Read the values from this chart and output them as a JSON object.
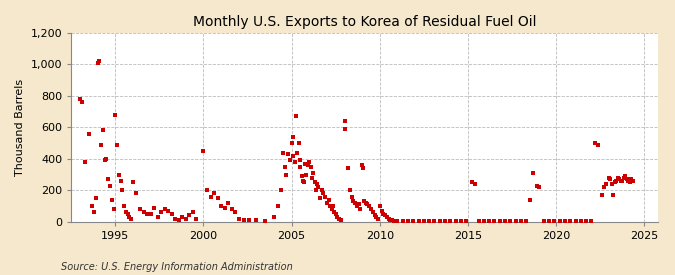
{
  "title": "Monthly U.S. Exports to Korea of Residual Fuel Oil",
  "ylabel": "Thousand Barrels",
  "source": "Source: U.S. Energy Information Administration",
  "background_color": "#f5e8cc",
  "plot_bg_color": "#ffffff",
  "marker_color": "#cc0000",
  "grid_color": "#bbbbbb",
  "xlim": [
    1992.5,
    2025.8
  ],
  "ylim": [
    0,
    1200
  ],
  "yticks": [
    0,
    200,
    400,
    600,
    800,
    1000,
    1200
  ],
  "xticks": [
    1995,
    2000,
    2005,
    2010,
    2015,
    2020,
    2025
  ],
  "data": [
    [
      1993.0,
      780
    ],
    [
      1993.1,
      760
    ],
    [
      1993.3,
      380
    ],
    [
      1993.5,
      560
    ],
    [
      1993.7,
      100
    ],
    [
      1993.8,
      60
    ],
    [
      1993.9,
      150
    ],
    [
      1994.0,
      1010
    ],
    [
      1994.08,
      1020
    ],
    [
      1994.2,
      490
    ],
    [
      1994.3,
      580
    ],
    [
      1994.4,
      390
    ],
    [
      1994.5,
      400
    ],
    [
      1994.6,
      270
    ],
    [
      1994.7,
      230
    ],
    [
      1994.8,
      140
    ],
    [
      1994.9,
      80
    ],
    [
      1995.0,
      680
    ],
    [
      1995.1,
      490
    ],
    [
      1995.2,
      300
    ],
    [
      1995.3,
      260
    ],
    [
      1995.4,
      200
    ],
    [
      1995.5,
      100
    ],
    [
      1995.6,
      60
    ],
    [
      1995.7,
      50
    ],
    [
      1995.8,
      30
    ],
    [
      1995.9,
      20
    ],
    [
      1996.0,
      250
    ],
    [
      1996.2,
      180
    ],
    [
      1996.4,
      80
    ],
    [
      1996.6,
      60
    ],
    [
      1996.8,
      50
    ],
    [
      1997.0,
      50
    ],
    [
      1997.2,
      90
    ],
    [
      1997.4,
      30
    ],
    [
      1997.6,
      60
    ],
    [
      1997.8,
      80
    ],
    [
      1998.0,
      70
    ],
    [
      1998.2,
      50
    ],
    [
      1998.4,
      20
    ],
    [
      1998.6,
      10
    ],
    [
      1998.8,
      30
    ],
    [
      1999.0,
      20
    ],
    [
      1999.2,
      40
    ],
    [
      1999.4,
      60
    ],
    [
      1999.6,
      20
    ],
    [
      2000.0,
      450
    ],
    [
      2000.2,
      200
    ],
    [
      2000.4,
      160
    ],
    [
      2000.6,
      180
    ],
    [
      2000.8,
      150
    ],
    [
      2001.0,
      100
    ],
    [
      2001.2,
      90
    ],
    [
      2001.4,
      120
    ],
    [
      2001.6,
      80
    ],
    [
      2001.8,
      60
    ],
    [
      2002.0,
      20
    ],
    [
      2002.3,
      10
    ],
    [
      2002.6,
      10
    ],
    [
      2003.0,
      10
    ],
    [
      2003.5,
      5
    ],
    [
      2004.0,
      30
    ],
    [
      2004.2,
      100
    ],
    [
      2004.4,
      200
    ],
    [
      2004.5,
      440
    ],
    [
      2004.6,
      350
    ],
    [
      2004.7,
      300
    ],
    [
      2004.8,
      430
    ],
    [
      2004.9,
      390
    ],
    [
      2005.0,
      500
    ],
    [
      2005.05,
      540
    ],
    [
      2005.1,
      420
    ],
    [
      2005.2,
      380
    ],
    [
      2005.25,
      670
    ],
    [
      2005.3,
      440
    ],
    [
      2005.4,
      500
    ],
    [
      2005.45,
      390
    ],
    [
      2005.5,
      350
    ],
    [
      2005.6,
      290
    ],
    [
      2005.65,
      260
    ],
    [
      2005.7,
      250
    ],
    [
      2005.75,
      370
    ],
    [
      2005.8,
      300
    ],
    [
      2005.9,
      360
    ],
    [
      2006.0,
      380
    ],
    [
      2006.1,
      350
    ],
    [
      2006.15,
      280
    ],
    [
      2006.2,
      310
    ],
    [
      2006.3,
      250
    ],
    [
      2006.4,
      200
    ],
    [
      2006.45,
      240
    ],
    [
      2006.5,
      220
    ],
    [
      2006.6,
      150
    ],
    [
      2006.7,
      200
    ],
    [
      2006.8,
      180
    ],
    [
      2006.9,
      160
    ],
    [
      2007.0,
      120
    ],
    [
      2007.1,
      140
    ],
    [
      2007.2,
      100
    ],
    [
      2007.3,
      80
    ],
    [
      2007.35,
      100
    ],
    [
      2007.4,
      60
    ],
    [
      2007.5,
      50
    ],
    [
      2007.6,
      30
    ],
    [
      2007.7,
      20
    ],
    [
      2007.8,
      10
    ],
    [
      2008.0,
      640
    ],
    [
      2008.05,
      590
    ],
    [
      2008.2,
      340
    ],
    [
      2008.3,
      200
    ],
    [
      2008.4,
      160
    ],
    [
      2008.5,
      130
    ],
    [
      2008.6,
      120
    ],
    [
      2008.7,
      100
    ],
    [
      2008.8,
      110
    ],
    [
      2008.9,
      80
    ],
    [
      2009.0,
      360
    ],
    [
      2009.05,
      340
    ],
    [
      2009.1,
      130
    ],
    [
      2009.2,
      120
    ],
    [
      2009.3,
      110
    ],
    [
      2009.4,
      100
    ],
    [
      2009.5,
      80
    ],
    [
      2009.6,
      60
    ],
    [
      2009.7,
      40
    ],
    [
      2009.8,
      30
    ],
    [
      2009.9,
      20
    ],
    [
      2010.0,
      100
    ],
    [
      2010.1,
      70
    ],
    [
      2010.2,
      50
    ],
    [
      2010.3,
      40
    ],
    [
      2010.4,
      30
    ],
    [
      2010.5,
      20
    ],
    [
      2010.6,
      10
    ],
    [
      2010.7,
      10
    ],
    [
      2010.8,
      5
    ],
    [
      2010.9,
      5
    ],
    [
      2011.0,
      5
    ],
    [
      2011.3,
      5
    ],
    [
      2011.6,
      5
    ],
    [
      2011.9,
      5
    ],
    [
      2012.2,
      5
    ],
    [
      2012.5,
      5
    ],
    [
      2012.8,
      5
    ],
    [
      2013.1,
      5
    ],
    [
      2013.4,
      5
    ],
    [
      2013.7,
      5
    ],
    [
      2014.0,
      5
    ],
    [
      2014.3,
      5
    ],
    [
      2014.6,
      5
    ],
    [
      2014.9,
      5
    ],
    [
      2015.2,
      250
    ],
    [
      2015.4,
      240
    ],
    [
      2015.6,
      5
    ],
    [
      2015.9,
      5
    ],
    [
      2016.2,
      5
    ],
    [
      2016.5,
      5
    ],
    [
      2016.8,
      5
    ],
    [
      2017.1,
      5
    ],
    [
      2017.4,
      5
    ],
    [
      2017.7,
      5
    ],
    [
      2018.0,
      5
    ],
    [
      2018.3,
      5
    ],
    [
      2018.5,
      140
    ],
    [
      2018.7,
      310
    ],
    [
      2018.9,
      230
    ],
    [
      2019.0,
      220
    ],
    [
      2019.3,
      5
    ],
    [
      2019.6,
      5
    ],
    [
      2019.9,
      5
    ],
    [
      2020.2,
      5
    ],
    [
      2020.5,
      5
    ],
    [
      2020.8,
      5
    ],
    [
      2021.1,
      5
    ],
    [
      2021.4,
      5
    ],
    [
      2021.7,
      5
    ],
    [
      2022.0,
      5
    ],
    [
      2022.2,
      500
    ],
    [
      2022.35,
      490
    ],
    [
      2022.6,
      170
    ],
    [
      2022.7,
      220
    ],
    [
      2022.8,
      240
    ],
    [
      2023.0,
      280
    ],
    [
      2023.08,
      270
    ],
    [
      2023.17,
      240
    ],
    [
      2023.25,
      170
    ],
    [
      2023.33,
      250
    ],
    [
      2023.42,
      260
    ],
    [
      2023.5,
      280
    ],
    [
      2023.58,
      270
    ],
    [
      2023.67,
      260
    ],
    [
      2023.75,
      260
    ],
    [
      2023.83,
      280
    ],
    [
      2023.92,
      290
    ],
    [
      2024.0,
      270
    ],
    [
      2024.08,
      260
    ],
    [
      2024.17,
      250
    ],
    [
      2024.25,
      270
    ],
    [
      2024.33,
      260
    ]
  ]
}
